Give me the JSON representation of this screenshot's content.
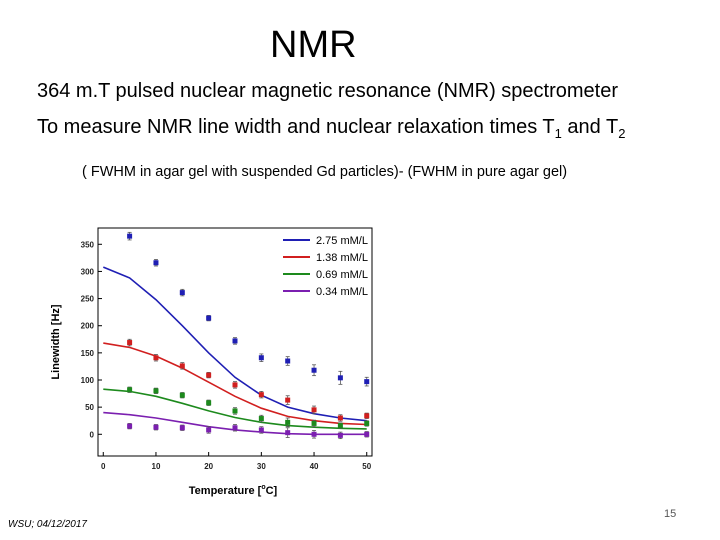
{
  "slide": {
    "title": "NMR",
    "line1": "364 m.T pulsed nuclear magnetic resonance (NMR) spectrometer",
    "line2_prefix": "To measure NMR line width and nuclear relaxation times T",
    "t1_sub": "1",
    "line2_and": " and T",
    "t2_sub": "2",
    "formula": "( FWHM in agar gel with suspended Gd particles)- (FWHM in pure agar gel)",
    "footer": "WSU; 04/12/2017",
    "page_number": "15"
  },
  "chart_data": {
    "type": "scatter",
    "xlabel": "Temperature [",
    "xlabel_degree": "o",
    "xlabel_unit": "C]",
    "ylabel": "Linewidth [Hz]",
    "xlim": [
      -1,
      51
    ],
    "ylim": [
      -40,
      380
    ],
    "x_ticks": [
      0,
      10,
      20,
      30,
      40,
      50
    ],
    "y_ticks": [
      0,
      50,
      100,
      150,
      200,
      250,
      300,
      350
    ],
    "x": [
      5,
      10,
      15,
      20,
      25,
      30,
      35,
      40,
      45,
      50
    ],
    "legend_position": "top-right",
    "series": [
      {
        "name": "2.75 mM/L",
        "color": "#1f1fb4",
        "points": [
          365,
          316,
          261,
          214,
          172,
          141,
          135,
          118,
          104,
          97
        ],
        "errors": [
          7,
          6,
          6,
          5,
          6,
          7,
          8,
          10,
          12,
          8
        ],
        "fit_x": [
          0,
          5,
          10,
          15,
          20,
          25,
          30,
          35,
          40,
          45,
          50
        ],
        "fit_y": [
          308,
          288,
          248,
          200,
          150,
          105,
          72,
          50,
          38,
          30,
          25
        ]
      },
      {
        "name": "1.38 mM/L",
        "color": "#d11f1f",
        "points": [
          169,
          141,
          126,
          109,
          91,
          73,
          63,
          45,
          30,
          34
        ],
        "errors": [
          6,
          6,
          6,
          5,
          6,
          6,
          8,
          7,
          6,
          5
        ],
        "fit_x": [
          0,
          5,
          10,
          15,
          20,
          25,
          30,
          35,
          40,
          45,
          50
        ],
        "fit_y": [
          168,
          160,
          144,
          122,
          96,
          70,
          48,
          33,
          25,
          20,
          18
        ]
      },
      {
        "name": "0.69 mM/L",
        "color": "#1d8a1d",
        "points": [
          82,
          80,
          72,
          58,
          43,
          29,
          22,
          20,
          16,
          20
        ],
        "errors": [
          5,
          5,
          5,
          5,
          6,
          6,
          8,
          6,
          5,
          5
        ],
        "fit_x": [
          0,
          5,
          10,
          15,
          20,
          25,
          30,
          35,
          40,
          45,
          50
        ],
        "fit_y": [
          83,
          79,
          70,
          57,
          43,
          31,
          22,
          16,
          13,
          11,
          10
        ]
      },
      {
        "name": "0.34 mM/L",
        "color": "#7b1fb0",
        "points": [
          15,
          13,
          12,
          8,
          12,
          8,
          3,
          0,
          -2,
          0
        ],
        "errors": [
          5,
          5,
          5,
          6,
          6,
          6,
          9,
          7,
          6,
          5
        ],
        "fit_x": [
          0,
          5,
          10,
          15,
          20,
          25,
          30,
          35,
          40,
          45,
          50
        ],
        "fit_y": [
          40,
          36,
          30,
          22,
          14,
          8,
          4,
          1,
          0,
          0,
          0
        ]
      }
    ]
  }
}
